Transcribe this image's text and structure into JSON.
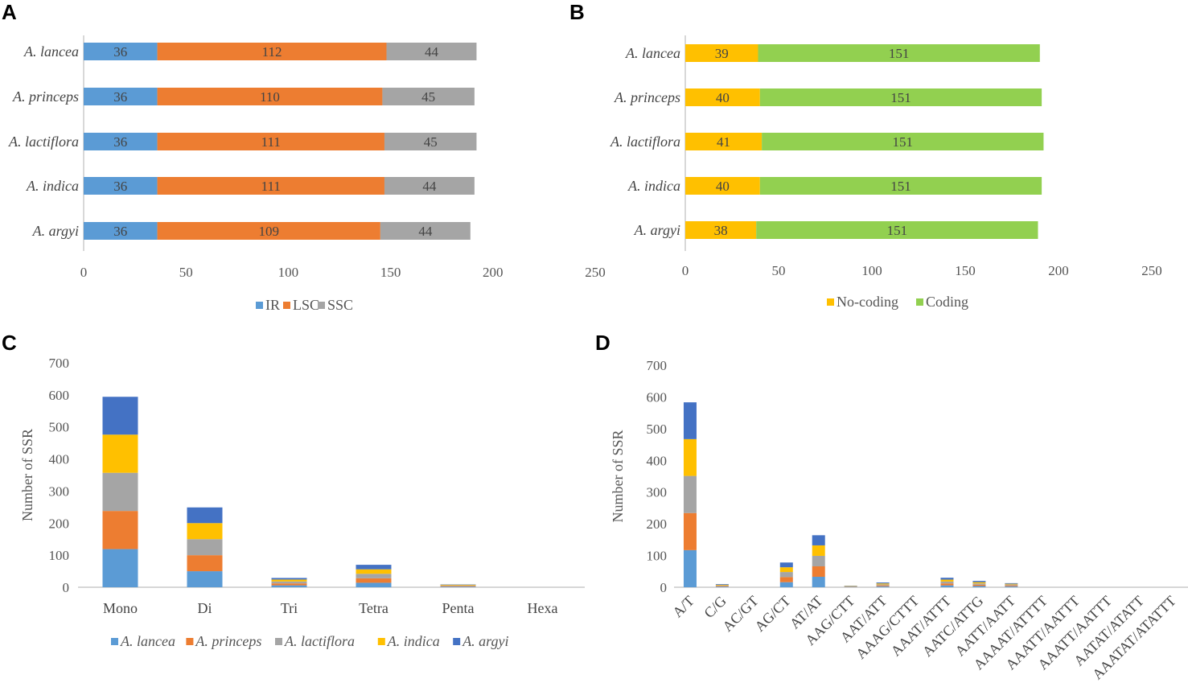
{
  "panels": {
    "A": "A",
    "B": "B",
    "C": "C",
    "D": "D"
  },
  "colors": {
    "IR": "#5b9bd5",
    "LSC": "#ed7d31",
    "SSC": "#a5a5a5",
    "NoCoding": "#ffc000",
    "Coding": "#92d050",
    "lancea": "#5b9bd5",
    "princeps": "#ed7d31",
    "lactiflora": "#a5a5a5",
    "indica": "#ffc000",
    "argyi": "#4472c4"
  },
  "chart_data": [
    {
      "id": "A",
      "type": "bar",
      "orientation": "horizontal",
      "stacked": true,
      "categories": [
        "A. lancea",
        "A. princeps",
        "A. lactiflora",
        "A. indica",
        "A. argyi"
      ],
      "series": [
        {
          "name": "IR",
          "values": [
            36,
            36,
            36,
            36,
            36
          ]
        },
        {
          "name": "LSC",
          "values": [
            112,
            110,
            111,
            111,
            109
          ]
        },
        {
          "name": "SSC",
          "values": [
            44,
            45,
            45,
            44,
            44
          ]
        }
      ],
      "xlim": [
        0,
        250
      ],
      "xticks": [
        "0",
        "50",
        "100",
        "150",
        "200",
        "250"
      ],
      "legend": [
        "IR",
        "LSC",
        "SSC"
      ],
      "legend_position": "bottom"
    },
    {
      "id": "B",
      "type": "bar",
      "orientation": "horizontal",
      "stacked": true,
      "categories": [
        "A. lancea",
        "A. princeps",
        "A. lactiflora",
        "A. indica",
        "A. argyi"
      ],
      "series": [
        {
          "name": "No-coding",
          "values": [
            39,
            40,
            41,
            40,
            38
          ]
        },
        {
          "name": "Coding",
          "values": [
            151,
            151,
            151,
            151,
            151
          ]
        }
      ],
      "xlim": [
        0,
        250
      ],
      "xticks": [
        "0",
        "50",
        "100",
        "150",
        "200",
        "250"
      ],
      "legend": [
        "No-coding",
        "Coding"
      ],
      "legend_position": "bottom"
    },
    {
      "id": "C",
      "type": "bar",
      "stacked": true,
      "categories": [
        "Mono",
        "Di",
        "Tri",
        "Tetra",
        "Penta",
        "Hexa"
      ],
      "series": [
        {
          "name": "A. lancea",
          "values": [
            119,
            50,
            6,
            14,
            2,
            0
          ]
        },
        {
          "name": "A. princeps",
          "values": [
            119,
            50,
            6,
            14,
            2,
            0
          ]
        },
        {
          "name": "A. lactiflora",
          "values": [
            119,
            50,
            6,
            14,
            2,
            0
          ]
        },
        {
          "name": "A. indica",
          "values": [
            119,
            50,
            6,
            14,
            2,
            0
          ]
        },
        {
          "name": "A. argyi",
          "values": [
            118,
            49,
            5,
            14,
            1,
            0
          ]
        }
      ],
      "ylabel": "Number of SSR",
      "ylim": [
        0,
        700
      ],
      "yticks": [
        "0",
        "100",
        "200",
        "300",
        "400",
        "500",
        "600",
        "700"
      ],
      "legend": [
        "A. lancea",
        "A. princeps",
        "A. lactiflora",
        "A. indica",
        "A. argyi"
      ],
      "legend_position": "bottom"
    },
    {
      "id": "D",
      "type": "bar",
      "stacked": true,
      "categories": [
        "A/T",
        "C/G",
        "AC/GT",
        "AG/CT",
        "AT/AT",
        "AAG/CTT",
        "AAT/ATT",
        "AAAG/CTTT",
        "AAAT/ATTT",
        "AATC/ATTG",
        "AATT/AATT",
        "AAAAT/ATTTT",
        "AAATT/AATTT",
        "AAATT/AATTT",
        "AATAT/ATATT",
        "AAATAT/ATATTT"
      ],
      "series": [
        {
          "name": "A. lancea",
          "values": [
            117,
            2,
            0,
            16,
            33,
            1,
            3,
            0,
            6,
            4,
            3,
            0,
            0,
            0,
            0,
            0
          ]
        },
        {
          "name": "A. princeps",
          "values": [
            117,
            2,
            0,
            16,
            33,
            1,
            3,
            0,
            6,
            4,
            3,
            0,
            0,
            0,
            0,
            0
          ]
        },
        {
          "name": "A. lactiflora",
          "values": [
            117,
            2,
            0,
            16,
            33,
            1,
            3,
            0,
            6,
            4,
            3,
            0,
            0,
            0,
            0,
            0
          ]
        },
        {
          "name": "A. indica",
          "values": [
            116,
            2,
            0,
            15,
            33,
            1,
            3,
            0,
            6,
            4,
            2,
            0,
            0,
            0,
            0,
            0
          ]
        },
        {
          "name": "A. argyi",
          "values": [
            116,
            2,
            0,
            15,
            32,
            1,
            3,
            0,
            6,
            4,
            2,
            0,
            0,
            0,
            0,
            0
          ]
        }
      ],
      "ylabel": "Number of SSR",
      "ylim": [
        0,
        700
      ],
      "yticks": [
        "0",
        "100",
        "200",
        "300",
        "400",
        "500",
        "600",
        "700"
      ]
    }
  ]
}
